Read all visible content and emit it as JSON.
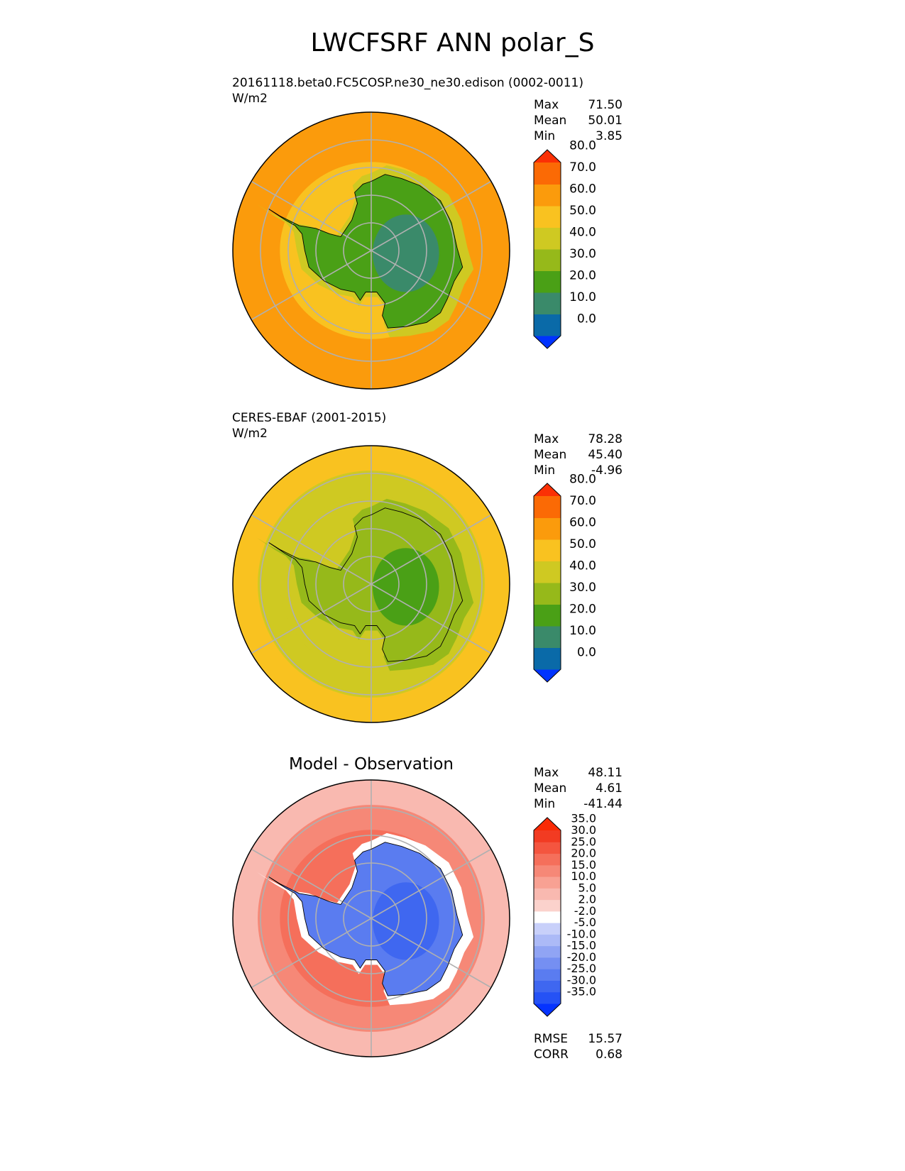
{
  "title": "LWCFSRF ANN polar_S",
  "chart_data": [
    {
      "type": "heatmap",
      "projection": "south polar stereographic",
      "title": "20161118.beta0.FC5COSP.ne30_ne30.edison (0002-0011)",
      "units": "W/m2",
      "stats": {
        "max_label": "Max",
        "max": "71.50",
        "mean_label": "Mean",
        "mean": "50.01",
        "min_label": "Min",
        "min": "3.85"
      },
      "levels": [
        "0.0",
        "10.0",
        "20.0",
        "30.0",
        "40.0",
        "50.0",
        "60.0",
        "70.0",
        "80.0"
      ],
      "colors": [
        "#0033ff",
        "#0a6aa8",
        "#3a8a6a",
        "#4aa016",
        "#96b91a",
        "#cfc922",
        "#f9c220",
        "#fb9b0c",
        "#fb6a05",
        "#fb3005"
      ],
      "field": {
        "ocean_outer": "60-70",
        "ocean_mid": "60-70",
        "sea_ice_ring": "50-60",
        "coastal_ring": "40-50",
        "continent_interior": "20-40",
        "east_plateau": "10-20"
      }
    },
    {
      "type": "heatmap",
      "projection": "south polar stereographic",
      "title": "CERES-EBAF (2001-2015)",
      "units": "W/m2",
      "stats": {
        "max_label": "Max",
        "max": "78.28",
        "mean_label": "Mean",
        "mean": "45.40",
        "min_label": "Min",
        "min": "-4.96"
      },
      "levels": [
        "0.0",
        "10.0",
        "20.0",
        "30.0",
        "40.0",
        "50.0",
        "60.0",
        "70.0",
        "80.0"
      ],
      "colors": [
        "#0033ff",
        "#0a6aa8",
        "#3a8a6a",
        "#4aa016",
        "#96b91a",
        "#cfc922",
        "#f9c220",
        "#fb9b0c",
        "#fb6a05",
        "#fb3005"
      ],
      "field": {
        "ocean_outer": "50-60",
        "ocean_mid": "40-50",
        "sea_ice_ring": "40-50",
        "coastal_ring": "30-40",
        "continent_interior": "30-40",
        "east_plateau": "20-30"
      }
    },
    {
      "type": "heatmap",
      "projection": "south polar stereographic",
      "title": "Model - Observation",
      "stats": {
        "max_label": "Max",
        "max": "48.11",
        "mean_label": "Mean",
        "mean": "4.61",
        "min_label": "Min",
        "min": "-41.44"
      },
      "levels": [
        "-35.0",
        "-30.0",
        "-25.0",
        "-20.0",
        "-15.0",
        "-10.0",
        "-5.0",
        "-2.0",
        "2.0",
        "5.0",
        "10.0",
        "15.0",
        "20.0",
        "25.0",
        "30.0",
        "35.0"
      ],
      "colors": [
        "#0533ff",
        "#2552f5",
        "#3f67f0",
        "#5a7cf0",
        "#758ff2",
        "#90a4f4",
        "#acbaf7",
        "#c8d0fa",
        "#ffffff",
        "#fbd2cc",
        "#f9b9b0",
        "#f8a193",
        "#f68877",
        "#f56f5b",
        "#f4553f",
        "#f23b22",
        "#f92a05"
      ],
      "field": {
        "ocean_outer": "5-10",
        "ocean_mid": "15-20",
        "sea_ice_ring": "20-25",
        "coastal_ring": "-2-2",
        "continent_interior": "-25--20",
        "east_plateau": "-30--25"
      },
      "metrics": {
        "rmse_label": "RMSE",
        "rmse": "15.57",
        "corr_label": "CORR",
        "corr": "0.68"
      }
    }
  ]
}
